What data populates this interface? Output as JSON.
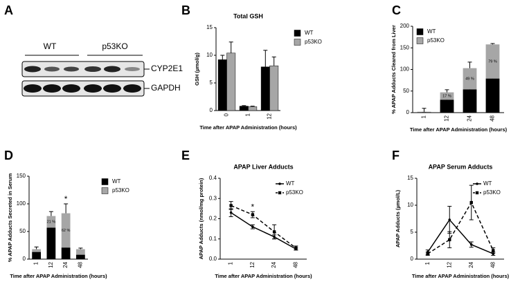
{
  "blot": {
    "label": "A",
    "groups": [
      "WT",
      "p53KO"
    ],
    "bands": [
      "CYP2E1",
      "GAPDH"
    ]
  },
  "chart_data": [
    {
      "type": "bar",
      "label": "B",
      "title": "Total GSH",
      "ylabel": "GSH (µmol/g)",
      "xlabel": "Time after APAP Administration (hours)",
      "categories": [
        "0",
        "1",
        "12"
      ],
      "ylim": [
        0,
        15
      ],
      "yticks": [
        0,
        5,
        10,
        15
      ],
      "legend": "right",
      "series": [
        {
          "name": "WT",
          "color": "#000000",
          "values": [
            9.2,
            0.8,
            7.9
          ],
          "errors": [
            0.8,
            0.1,
            3.0
          ]
        },
        {
          "name": "p53KO",
          "color": "#a6a6a6",
          "values": [
            10.4,
            0.7,
            8.1
          ],
          "errors": [
            2.0,
            0.1,
            1.6
          ]
        }
      ]
    },
    {
      "type": "stacked_bar",
      "label": "C",
      "ylabel": "% APAP Adducts Cleared from Liver",
      "xlabel": "Time after APAP Administration (hours)",
      "categories": [
        "1",
        "12",
        "24",
        "48"
      ],
      "ylim": [
        0,
        200
      ],
      "yticks": [
        0,
        50,
        100,
        150,
        200
      ],
      "legend": "upper left",
      "series": [
        {
          "name": "WT",
          "color": "#000000",
          "values": [
            1,
            30,
            54,
            79
          ],
          "errors": [
            0,
            3,
            3,
            3
          ],
          "value_labels": [
            null,
            "30 %",
            "54 %",
            "79 %"
          ]
        },
        {
          "name": "p53KO",
          "color": "#a6a6a6",
          "values": [
            1,
            17,
            49,
            79
          ],
          "errors": [
            8,
            6,
            14,
            2
          ],
          "value_labels": [
            null,
            "17 %",
            "49 %",
            "79 %"
          ]
        }
      ]
    },
    {
      "type": "stacked_bar",
      "label": "D",
      "ylabel": "% APAP Adducts Secreted in Serum",
      "xlabel": "Time after APAP Administration (hours)",
      "categories": [
        "1",
        "12",
        "24",
        "48"
      ],
      "ylim": [
        0,
        150
      ],
      "yticks": [
        0,
        50,
        100,
        150
      ],
      "legend": "right",
      "annotations": [
        {
          "text": "*",
          "x": "24"
        }
      ],
      "series": [
        {
          "name": "WT",
          "color": "#000000",
          "values": [
            13,
            57,
            21,
            8
          ],
          "errors": [
            2,
            3,
            3,
            2
          ],
          "value_labels": [
            null,
            "57 %",
            "21 %",
            null
          ]
        },
        {
          "name": "p53KO",
          "color": "#a6a6a6",
          "values": [
            5,
            21,
            62,
            10
          ],
          "errors": [
            4,
            8,
            17,
            2
          ],
          "value_labels": [
            null,
            "21 %",
            "62 %",
            null
          ]
        }
      ]
    },
    {
      "type": "line",
      "label": "E",
      "title": "APAP Liver Adducts",
      "ylabel": "APAP Adducts (nmol/mg protein)",
      "xlabel": "Time after APAP Administration (hours)",
      "categories": [
        "1",
        "12",
        "24",
        "48"
      ],
      "ylim": [
        0,
        0.4
      ],
      "yticks": [
        {
          "value": 0,
          "label": "0.0"
        },
        0.1,
        0.2,
        0.3,
        0.4
      ],
      "legend": "upper right",
      "annotations": [
        {
          "text": "*",
          "x": "12"
        }
      ],
      "series": [
        {
          "name": "WT",
          "color": "#000000",
          "line_style": "solid",
          "values": [
            0.23,
            0.16,
            0.11,
            0.05
          ],
          "errors": [
            0.02,
            0.01,
            0.01,
            0.005
          ]
        },
        {
          "name": "p53KO",
          "color": "#000000",
          "line_style": "dashed",
          "values": [
            0.265,
            0.22,
            0.135,
            0.055
          ],
          "errors": [
            0.02,
            0.015,
            0.035,
            0.01
          ]
        }
      ]
    },
    {
      "type": "line",
      "label": "F",
      "title": "APAP Serum Adducts",
      "ylabel": "APAP Adducts (µmol/L)",
      "xlabel": "Time after APAP Administration (hours)",
      "categories": [
        "1",
        "12",
        "24",
        "48"
      ],
      "ylim": [
        0,
        15
      ],
      "yticks": [
        0,
        5,
        10,
        15
      ],
      "legend": "upper right",
      "series": [
        {
          "name": "WT",
          "color": "#000000",
          "line_style": "solid",
          "values": [
            1.3,
            7.3,
            2.7,
            1.0
          ],
          "errors": [
            0.4,
            2.5,
            0.5,
            0.3
          ]
        },
        {
          "name": "p53KO",
          "color": "#000000",
          "line_style": "dashed",
          "values": [
            1.0,
            3.6,
            10.5,
            1.6
          ],
          "errors": [
            0.3,
            1.5,
            3.2,
            0.5
          ]
        }
      ]
    }
  ]
}
